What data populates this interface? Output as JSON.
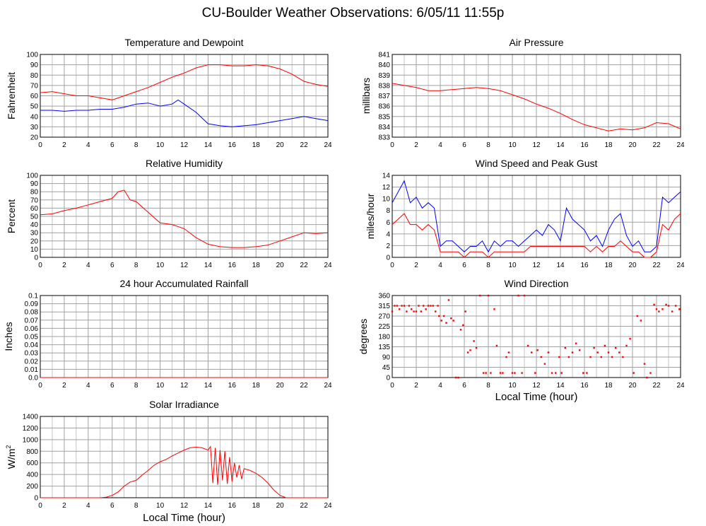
{
  "page": {
    "title": "CU-Boulder Weather Observations: 6/05/11 11:55p"
  },
  "colors": {
    "series_red": "#ff0000",
    "series_blue": "#0000ff",
    "grid": "#a0a0a0",
    "frame": "#000000"
  },
  "chart_data": [
    {
      "id": "temperature",
      "type": "line",
      "title": "Temperature and Dewpoint",
      "ylabel": "Fahrenheit",
      "xlabel": "",
      "xlim": [
        0,
        24
      ],
      "ylim": [
        20,
        100
      ],
      "xticks": [
        "0",
        "2",
        "4",
        "6",
        "8",
        "10",
        "12",
        "14",
        "16",
        "18",
        "20",
        "22",
        "24"
      ],
      "yticks": [
        "20",
        "30",
        "40",
        "50",
        "60",
        "70",
        "80",
        "90",
        "100"
      ],
      "grid": true,
      "series": [
        {
          "color": "#ff0000",
          "x": [
            0,
            1,
            2,
            3,
            4,
            5,
            6,
            7,
            8,
            9,
            10,
            11,
            12,
            13,
            14,
            15,
            16,
            17,
            18,
            19,
            20,
            21,
            22,
            23,
            24
          ],
          "y": [
            63,
            64,
            62,
            60,
            60,
            58,
            56,
            60,
            64,
            68,
            73,
            78,
            82,
            87,
            90,
            90,
            89,
            89,
            90,
            89,
            86,
            81,
            74,
            71,
            69
          ]
        },
        {
          "color": "#0000ff",
          "x": [
            0,
            1,
            2,
            3,
            4,
            5,
            6,
            7,
            8,
            9,
            10,
            11,
            11.5,
            12,
            13,
            14,
            15,
            16,
            17,
            18,
            19,
            20,
            21,
            22,
            23,
            24
          ],
          "y": [
            46,
            46,
            45,
            46,
            46,
            47,
            47,
            49,
            52,
            53,
            50,
            52,
            56,
            52,
            44,
            33,
            31,
            30,
            31,
            32,
            34,
            36,
            38,
            40,
            38,
            36
          ]
        }
      ]
    },
    {
      "id": "pressure",
      "type": "line",
      "title": "Air Pressure",
      "ylabel": "millibars",
      "xlabel": "",
      "xlim": [
        0,
        24
      ],
      "ylim": [
        833,
        841
      ],
      "xticks": [
        "0",
        "2",
        "4",
        "6",
        "8",
        "10",
        "12",
        "14",
        "16",
        "18",
        "20",
        "22",
        "24"
      ],
      "yticks": [
        "833",
        "834",
        "835",
        "836",
        "837",
        "838",
        "839",
        "840",
        "841"
      ],
      "grid": true,
      "series": [
        {
          "color": "#ff0000",
          "x": [
            0,
            1,
            2,
            3,
            4,
            5,
            6,
            7,
            8,
            9,
            10,
            11,
            12,
            13,
            14,
            15,
            16,
            17,
            18,
            19,
            20,
            21,
            22,
            23,
            24
          ],
          "y": [
            838.2,
            838.0,
            837.8,
            837.5,
            837.5,
            837.6,
            837.7,
            837.8,
            837.7,
            837.5,
            837.1,
            836.7,
            836.2,
            835.8,
            835.3,
            834.7,
            834.2,
            833.9,
            833.6,
            833.8,
            833.7,
            833.9,
            834.4,
            834.3,
            833.8
          ]
        }
      ]
    },
    {
      "id": "humidity",
      "type": "line",
      "title": "Relative Humidity",
      "ylabel": "Percent",
      "xlabel": "",
      "xlim": [
        0,
        24
      ],
      "ylim": [
        0,
        100
      ],
      "xticks": [
        "0",
        "2",
        "4",
        "6",
        "8",
        "10",
        "12",
        "14",
        "16",
        "18",
        "20",
        "22",
        "24"
      ],
      "yticks": [
        "0",
        "10",
        "20",
        "30",
        "40",
        "50",
        "60",
        "70",
        "80",
        "90",
        "100"
      ],
      "grid": true,
      "series": [
        {
          "color": "#ff0000",
          "x": [
            0,
            1,
            2,
            3,
            4,
            5,
            6,
            6.5,
            7,
            7.5,
            8,
            9,
            10,
            11,
            12,
            13,
            14,
            15,
            16,
            17,
            18,
            19,
            20,
            21,
            22,
            23,
            24
          ],
          "y": [
            52,
            53,
            57,
            60,
            64,
            68,
            72,
            80,
            82,
            70,
            68,
            55,
            42,
            40,
            35,
            24,
            16,
            13,
            12,
            12,
            13,
            15,
            20,
            25,
            30,
            29,
            30
          ]
        }
      ]
    },
    {
      "id": "wind-speed",
      "type": "line",
      "title": "Wind Speed and Peak Gust",
      "ylabel": "miles/hour",
      "xlabel": "",
      "xlim": [
        0,
        24
      ],
      "ylim": [
        0,
        15
      ],
      "xticks": [
        "0",
        "2",
        "4",
        "6",
        "8",
        "10",
        "12",
        "14",
        "16",
        "18",
        "20",
        "22",
        "24"
      ],
      "yticks": [
        "0",
        "2",
        "4",
        "6",
        "8",
        "10",
        "12",
        "14"
      ],
      "grid": true,
      "series": [
        {
          "color": "#0000ff",
          "x": [
            0,
            0.5,
            1,
            1.5,
            2,
            2.5,
            3,
            3.5,
            4,
            4.5,
            5,
            5.5,
            6,
            6.5,
            7,
            7.5,
            8,
            8.5,
            9,
            9.5,
            10,
            10.5,
            11,
            11.5,
            12,
            12.5,
            13,
            13.5,
            14,
            14.5,
            15,
            15.5,
            16,
            16.5,
            17,
            17.5,
            18,
            18.5,
            19,
            19.5,
            20,
            20.5,
            21,
            21.5,
            22,
            22.5,
            23,
            23.5,
            24
          ],
          "y": [
            10,
            12,
            14,
            10,
            11,
            9,
            10,
            9,
            2,
            3,
            3,
            2,
            1,
            2,
            2,
            3,
            1,
            3,
            2,
            3,
            3,
            2,
            3,
            4,
            5,
            4,
            6,
            5,
            3,
            9,
            7,
            6,
            5,
            3,
            4,
            2,
            5,
            7,
            8,
            4,
            2,
            3,
            1,
            1,
            2,
            11,
            10,
            11,
            12
          ]
        },
        {
          "color": "#ff0000",
          "x": [
            0,
            0.5,
            1,
            1.5,
            2,
            2.5,
            3,
            3.5,
            4,
            4.5,
            5,
            5.5,
            6,
            6.5,
            7,
            7.5,
            8,
            8.5,
            9,
            9.5,
            10,
            10.5,
            11,
            11.5,
            12,
            12.5,
            13,
            13.5,
            14,
            14.5,
            15,
            15.5,
            16,
            16.5,
            17,
            17.5,
            18,
            18.5,
            19,
            19.5,
            20,
            20.5,
            21,
            21.5,
            22,
            22.5,
            23,
            23.5,
            24
          ],
          "y": [
            6,
            7,
            8,
            6,
            6,
            5,
            6,
            5,
            1,
            1,
            1,
            1,
            0,
            1,
            1,
            1,
            0,
            1,
            1,
            1,
            1,
            1,
            1,
            2,
            2,
            2,
            2,
            2,
            2,
            2,
            2,
            2,
            2,
            1,
            2,
            1,
            2,
            2,
            3,
            2,
            1,
            1,
            0,
            0,
            1,
            6,
            5,
            7,
            8
          ]
        }
      ]
    },
    {
      "id": "rainfall",
      "type": "line",
      "title": "24 hour Accumulated Rainfall",
      "ylabel": "Inches",
      "xlabel": "",
      "xlim": [
        0,
        24
      ],
      "ylim": [
        0,
        0.1
      ],
      "xticks": [
        "0",
        "2",
        "4",
        "6",
        "8",
        "10",
        "12",
        "14",
        "16",
        "18",
        "20",
        "22",
        "24"
      ],
      "yticks": [
        "0.0",
        "0.01",
        "0.02",
        "0.03",
        "0.04",
        "0.05",
        "0.06",
        "0.07",
        "0.08",
        "0.09",
        "0.1"
      ],
      "grid": true,
      "series": [
        {
          "color": "#ff0000",
          "x": [
            0,
            24
          ],
          "y": [
            0,
            0
          ]
        }
      ]
    },
    {
      "id": "wind-direction",
      "type": "scatter",
      "title": "Wind Direction",
      "ylabel": "degrees",
      "xlabel": "Local Time (hour)",
      "xlim": [
        0,
        24
      ],
      "ylim": [
        0,
        360
      ],
      "xticks": [
        "0",
        "2",
        "4",
        "6",
        "8",
        "10",
        "12",
        "14",
        "16",
        "18",
        "20",
        "22",
        "24"
      ],
      "yticks": [
        "0",
        "45",
        "90",
        "135",
        "180",
        "225",
        "270",
        "315",
        "360"
      ],
      "grid": true,
      "series": [
        {
          "color": "#ff0000",
          "x": [
            0,
            0.2,
            0.4,
            0.6,
            0.8,
            1,
            1.2,
            1.4,
            1.6,
            1.8,
            2,
            2.2,
            2.4,
            2.6,
            2.8,
            3,
            3.2,
            3.4,
            3.6,
            3.8,
            3.9,
            4.1,
            4.3,
            4.5,
            4.7,
            4.9,
            5.1,
            5.3,
            5.5,
            5.7,
            5.9,
            6.1,
            6.3,
            6.5,
            6.8,
            7,
            7.3,
            7.6,
            7.8,
            8,
            8.2,
            8.5,
            8.7,
            9,
            9.2,
            9.5,
            9.7,
            10,
            10.2,
            10.5,
            10.8,
            11,
            11.3,
            11.6,
            11.9,
            12.1,
            12.4,
            12.7,
            13,
            13.3,
            13.6,
            13.9,
            14.1,
            14.4,
            14.7,
            15,
            15.3,
            15.6,
            15.9,
            16.2,
            16.5,
            16.8,
            17.1,
            17.4,
            17.7,
            18,
            18.3,
            18.6,
            18.9,
            19.2,
            19.5,
            19.8,
            20.1,
            20.4,
            20.7,
            21,
            21.2,
            21.5,
            21.8,
            22,
            22.2,
            22.5,
            22.8,
            23,
            23.3,
            23.6,
            23.9
          ],
          "y": [
            290,
            315,
            315,
            300,
            315,
            315,
            290,
            315,
            300,
            290,
            290,
            315,
            290,
            315,
            300,
            315,
            315,
            315,
            290,
            315,
            270,
            250,
            270,
            240,
            340,
            260,
            250,
            0,
            0,
            210,
            230,
            290,
            110,
            120,
            160,
            130,
            360,
            20,
            20,
            360,
            20,
            300,
            140,
            20,
            20,
            90,
            110,
            20,
            20,
            360,
            20,
            360,
            140,
            110,
            20,
            120,
            90,
            60,
            110,
            20,
            20,
            90,
            20,
            130,
            90,
            110,
            150,
            120,
            20,
            20,
            90,
            130,
            110,
            90,
            140,
            110,
            90,
            130,
            110,
            90,
            140,
            170,
            20,
            270,
            250,
            60,
            0,
            20,
            320,
            300,
            290,
            300,
            320,
            315,
            290,
            315,
            300
          ]
        }
      ]
    },
    {
      "id": "solar",
      "type": "line",
      "title": "Solar Irradiance",
      "ylabel": "W/m",
      "ylabel_sup": "2",
      "xlabel": "Local Time (hour)",
      "xlim": [
        0,
        24
      ],
      "ylim": [
        0,
        1400
      ],
      "xticks": [
        "0",
        "2",
        "4",
        "6",
        "8",
        "10",
        "12",
        "14",
        "16",
        "18",
        "20",
        "22",
        "24"
      ],
      "yticks": [
        "0",
        "200",
        "400",
        "600",
        "800",
        "1000",
        "1200",
        "1400"
      ],
      "grid": true,
      "series": [
        {
          "color": "#ff0000",
          "x": [
            0,
            5,
            5.5,
            6,
            6.5,
            7,
            7.5,
            8,
            8.5,
            9,
            9.5,
            10,
            10.5,
            11,
            11.5,
            12,
            12.5,
            13,
            13.5,
            14,
            14.2,
            14.4,
            14.6,
            14.8,
            15,
            15.2,
            15.4,
            15.6,
            15.8,
            16,
            16.2,
            16.4,
            16.6,
            16.8,
            17,
            17.5,
            18,
            18.5,
            19,
            19.5,
            20,
            20.5,
            21,
            24
          ],
          "y": [
            0,
            0,
            10,
            40,
            100,
            200,
            270,
            300,
            390,
            470,
            560,
            620,
            660,
            720,
            770,
            820,
            860,
            870,
            860,
            820,
            880,
            250,
            860,
            220,
            820,
            300,
            800,
            240,
            700,
            280,
            600,
            350,
            560,
            320,
            500,
            470,
            420,
            350,
            250,
            130,
            40,
            0,
            0,
            0
          ]
        }
      ]
    }
  ]
}
